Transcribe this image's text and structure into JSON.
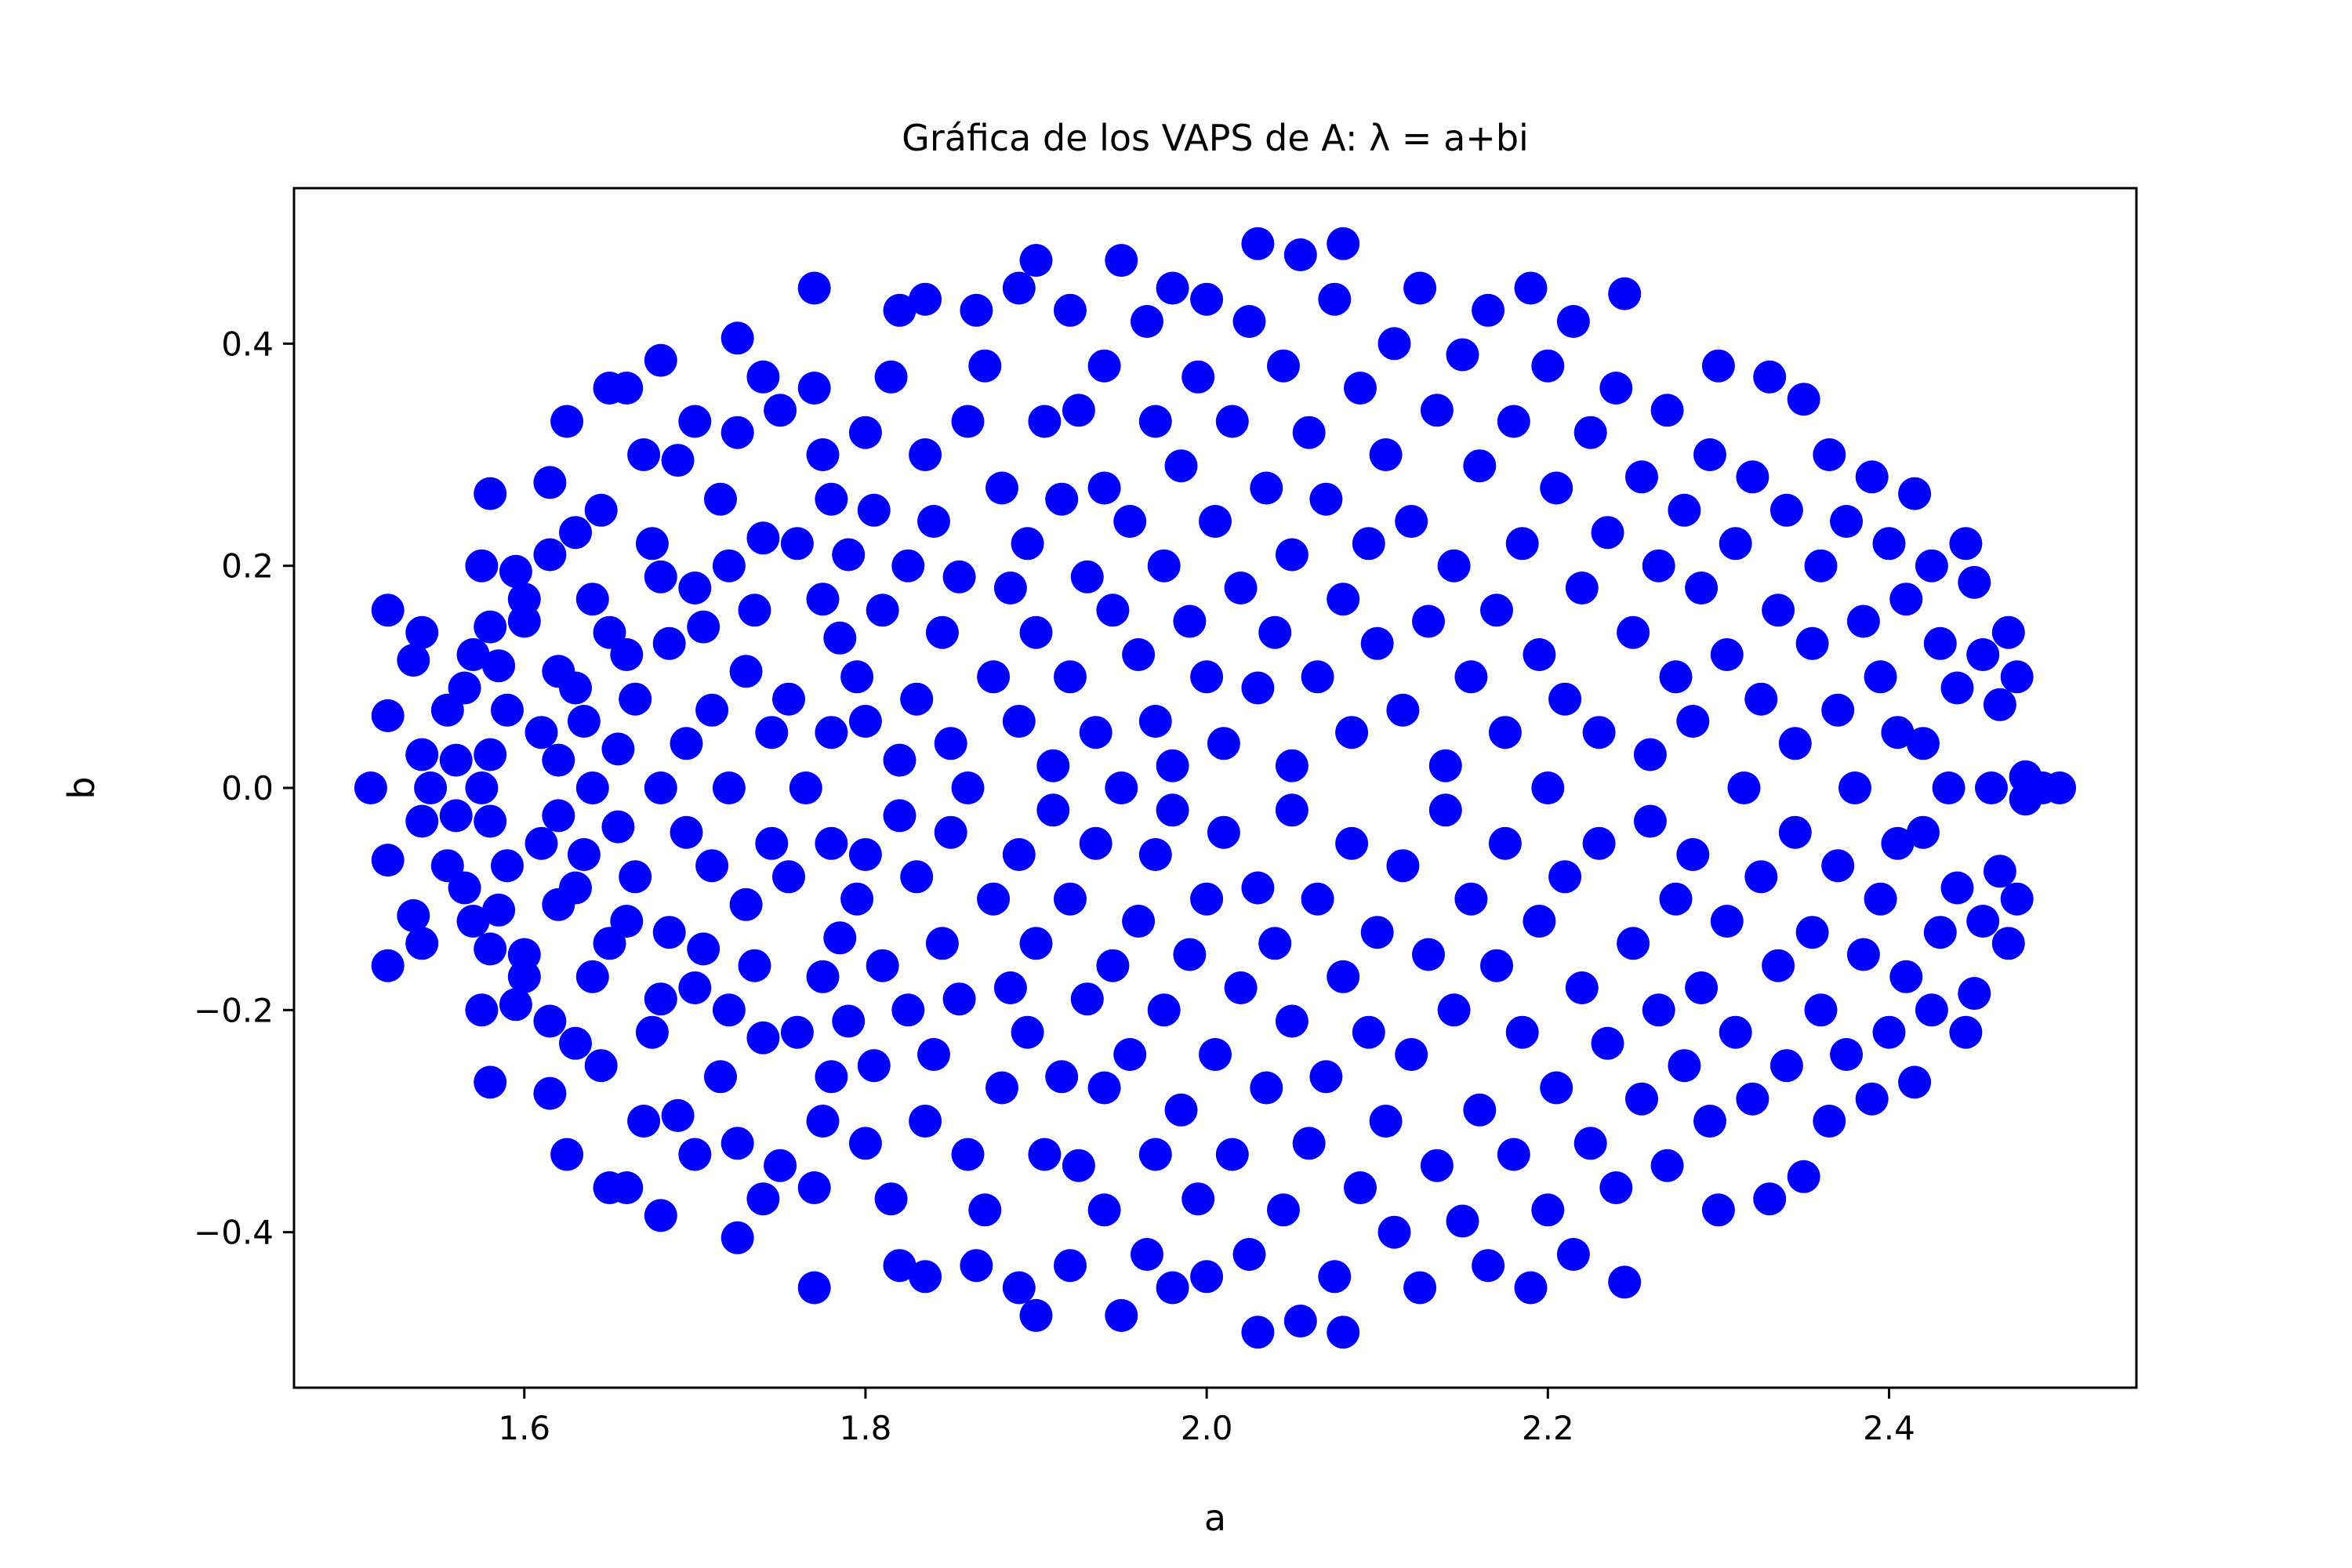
{
  "chart_data": {
    "type": "scatter",
    "title": "Gráfica de los VAPS de A: λ = a+bi",
    "xlabel": "a",
    "ylabel": "b",
    "xlim": [
      1.465,
      2.545
    ],
    "ylim": [
      -0.54,
      0.54
    ],
    "xticks": [
      1.6,
      1.8,
      2.0,
      2.2,
      2.4
    ],
    "xtick_labels": [
      "1.6",
      "1.8",
      "2.0",
      "2.2",
      "2.4"
    ],
    "yticks": [
      -0.4,
      -0.2,
      0.0,
      0.2,
      0.4
    ],
    "ytick_labels": [
      "−0.4",
      "−0.2",
      "0.0",
      "0.2",
      "0.4"
    ],
    "grid": false,
    "marker_color": "#0000ff",
    "symmetry": "points appear in complex-conjugate pairs (a, ±b); listed below are the upper half-plane points (b ≥ 0), the mirrored points (a, −b) are also plotted",
    "series": [
      {
        "points_upper": [
          [
            1.51,
            0.0
          ],
          [
            1.52,
            0.16
          ],
          [
            1.52,
            0.065
          ],
          [
            1.535,
            0.115
          ],
          [
            1.54,
            0.14
          ],
          [
            1.54,
            0.03
          ],
          [
            1.545,
            0.0
          ],
          [
            1.555,
            0.07
          ],
          [
            1.56,
            0.025
          ],
          [
            1.565,
            0.09
          ],
          [
            1.57,
            0.12
          ],
          [
            1.575,
            0.2
          ],
          [
            1.575,
            0.0
          ],
          [
            1.58,
            0.265
          ],
          [
            1.58,
            0.145
          ],
          [
            1.58,
            0.03
          ],
          [
            1.585,
            0.11
          ],
          [
            1.59,
            0.07
          ],
          [
            1.595,
            0.195
          ],
          [
            1.6,
            0.17
          ],
          [
            1.6,
            0.15
          ],
          [
            1.61,
            0.05
          ],
          [
            1.615,
            0.21
          ],
          [
            1.615,
            0.275
          ],
          [
            1.62,
            0.105
          ],
          [
            1.62,
            0.025
          ],
          [
            1.625,
            0.33
          ],
          [
            1.63,
            0.23
          ],
          [
            1.63,
            0.09
          ],
          [
            1.635,
            0.06
          ],
          [
            1.64,
            0.17
          ],
          [
            1.64,
            0.0
          ],
          [
            1.645,
            0.25
          ],
          [
            1.65,
            0.36
          ],
          [
            1.65,
            0.14
          ],
          [
            1.655,
            0.035
          ],
          [
            1.66,
            0.36
          ],
          [
            1.66,
            0.12
          ],
          [
            1.665,
            0.08
          ],
          [
            1.67,
            0.3
          ],
          [
            1.675,
            0.22
          ],
          [
            1.68,
            0.385
          ],
          [
            1.68,
            0.19
          ],
          [
            1.68,
            0.0
          ],
          [
            1.685,
            0.13
          ],
          [
            1.69,
            0.295
          ],
          [
            1.695,
            0.04
          ],
          [
            1.7,
            0.33
          ],
          [
            1.7,
            0.18
          ],
          [
            1.705,
            0.145
          ],
          [
            1.71,
            0.07
          ],
          [
            1.715,
            0.26
          ],
          [
            1.72,
            0.2
          ],
          [
            1.72,
            0.0
          ],
          [
            1.725,
            0.405
          ],
          [
            1.725,
            0.32
          ],
          [
            1.73,
            0.105
          ],
          [
            1.735,
            0.16
          ],
          [
            1.74,
            0.37
          ],
          [
            1.74,
            0.225
          ],
          [
            1.745,
            0.05
          ],
          [
            1.75,
            0.34
          ],
          [
            1.755,
            0.08
          ],
          [
            1.76,
            0.22
          ],
          [
            1.765,
            0.0
          ],
          [
            1.77,
            0.45
          ],
          [
            1.77,
            0.36
          ],
          [
            1.775,
            0.3
          ],
          [
            1.775,
            0.17
          ],
          [
            1.78,
            0.26
          ],
          [
            1.78,
            0.05
          ],
          [
            1.785,
            0.135
          ],
          [
            1.79,
            0.21
          ],
          [
            1.795,
            0.1
          ],
          [
            1.8,
            0.32
          ],
          [
            1.8,
            0.06
          ],
          [
            1.805,
            0.25
          ],
          [
            1.81,
            0.16
          ],
          [
            1.815,
            0.37
          ],
          [
            1.82,
            0.025
          ],
          [
            1.82,
            0.43
          ],
          [
            1.825,
            0.2
          ],
          [
            1.83,
            0.08
          ],
          [
            1.835,
            0.44
          ],
          [
            1.835,
            0.3
          ],
          [
            1.84,
            0.24
          ],
          [
            1.845,
            0.14
          ],
          [
            1.85,
            0.04
          ],
          [
            1.855,
            0.19
          ],
          [
            1.86,
            0.33
          ],
          [
            1.86,
            0.0
          ],
          [
            1.865,
            0.43
          ],
          [
            1.87,
            0.38
          ],
          [
            1.875,
            0.1
          ],
          [
            1.88,
            0.27
          ],
          [
            1.885,
            0.18
          ],
          [
            1.89,
            0.45
          ],
          [
            1.89,
            0.06
          ],
          [
            1.895,
            0.22
          ],
          [
            1.9,
            0.475
          ],
          [
            1.9,
            0.14
          ],
          [
            1.905,
            0.33
          ],
          [
            1.91,
            0.02
          ],
          [
            1.915,
            0.26
          ],
          [
            1.92,
            0.43
          ],
          [
            1.92,
            0.1
          ],
          [
            1.925,
            0.34
          ],
          [
            1.93,
            0.19
          ],
          [
            1.935,
            0.05
          ],
          [
            1.94,
            0.38
          ],
          [
            1.94,
            0.27
          ],
          [
            1.945,
            0.16
          ],
          [
            1.95,
            0.475
          ],
          [
            1.95,
            0.0
          ],
          [
            1.955,
            0.24
          ],
          [
            1.96,
            0.12
          ],
          [
            1.965,
            0.42
          ],
          [
            1.97,
            0.33
          ],
          [
            1.97,
            0.06
          ],
          [
            1.975,
            0.2
          ],
          [
            1.98,
            0.45
          ],
          [
            1.98,
            0.02
          ],
          [
            1.985,
            0.29
          ],
          [
            1.99,
            0.15
          ],
          [
            1.995,
            0.37
          ],
          [
            2.0,
            0.1
          ],
          [
            2.0,
            0.44
          ],
          [
            2.005,
            0.24
          ],
          [
            2.01,
            0.04
          ],
          [
            2.015,
            0.33
          ],
          [
            2.02,
            0.18
          ],
          [
            2.025,
            0.42
          ],
          [
            2.03,
            0.09
          ],
          [
            2.03,
            0.49
          ],
          [
            2.035,
            0.27
          ],
          [
            2.04,
            0.14
          ],
          [
            2.045,
            0.38
          ],
          [
            2.05,
            0.02
          ],
          [
            2.05,
            0.21
          ],
          [
            2.055,
            0.48
          ],
          [
            2.06,
            0.32
          ],
          [
            2.065,
            0.1
          ],
          [
            2.07,
            0.26
          ],
          [
            2.075,
            0.44
          ],
          [
            2.08,
            0.17
          ],
          [
            2.08,
            0.49
          ],
          [
            2.085,
            0.05
          ],
          [
            2.09,
            0.36
          ],
          [
            2.095,
            0.22
          ],
          [
            2.1,
            0.13
          ],
          [
            2.105,
            0.3
          ],
          [
            2.11,
            0.4
          ],
          [
            2.115,
            0.07
          ],
          [
            2.12,
            0.24
          ],
          [
            2.125,
            0.45
          ],
          [
            2.13,
            0.15
          ],
          [
            2.135,
            0.34
          ],
          [
            2.14,
            0.02
          ],
          [
            2.145,
            0.2
          ],
          [
            2.15,
            0.39
          ],
          [
            2.155,
            0.1
          ],
          [
            2.16,
            0.29
          ],
          [
            2.165,
            0.43
          ],
          [
            2.17,
            0.16
          ],
          [
            2.175,
            0.05
          ],
          [
            2.18,
            0.33
          ],
          [
            2.185,
            0.22
          ],
          [
            2.19,
            0.45
          ],
          [
            2.195,
            0.12
          ],
          [
            2.2,
            0.38
          ],
          [
            2.2,
            0.0
          ],
          [
            2.205,
            0.27
          ],
          [
            2.21,
            0.08
          ],
          [
            2.215,
            0.42
          ],
          [
            2.22,
            0.18
          ],
          [
            2.225,
            0.32
          ],
          [
            2.23,
            0.05
          ],
          [
            2.235,
            0.23
          ],
          [
            2.24,
            0.36
          ],
          [
            2.245,
            0.445
          ],
          [
            2.25,
            0.14
          ],
          [
            2.255,
            0.28
          ],
          [
            2.26,
            0.03
          ],
          [
            2.265,
            0.2
          ],
          [
            2.27,
            0.34
          ],
          [
            2.275,
            0.1
          ],
          [
            2.28,
            0.25
          ],
          [
            2.285,
            0.06
          ],
          [
            2.29,
            0.18
          ],
          [
            2.295,
            0.3
          ],
          [
            2.3,
            0.38
          ],
          [
            2.305,
            0.12
          ],
          [
            2.31,
            0.22
          ],
          [
            2.315,
            0.0
          ],
          [
            2.32,
            0.28
          ],
          [
            2.325,
            0.08
          ],
          [
            2.33,
            0.37
          ],
          [
            2.335,
            0.16
          ],
          [
            2.34,
            0.25
          ],
          [
            2.345,
            0.04
          ],
          [
            2.35,
            0.35
          ],
          [
            2.355,
            0.13
          ],
          [
            2.36,
            0.2
          ],
          [
            2.365,
            0.3
          ],
          [
            2.37,
            0.07
          ],
          [
            2.375,
            0.24
          ],
          [
            2.38,
            0.0
          ],
          [
            2.385,
            0.15
          ],
          [
            2.39,
            0.28
          ],
          [
            2.395,
            0.1
          ],
          [
            2.4,
            0.22
          ],
          [
            2.405,
            0.05
          ],
          [
            2.41,
            0.17
          ],
          [
            2.415,
            0.265
          ],
          [
            2.42,
            0.04
          ],
          [
            2.425,
            0.2
          ],
          [
            2.43,
            0.13
          ],
          [
            2.435,
            0.0
          ],
          [
            2.44,
            0.09
          ],
          [
            2.445,
            0.22
          ],
          [
            2.45,
            0.185
          ],
          [
            2.455,
            0.12
          ],
          [
            2.46,
            0.0
          ],
          [
            2.465,
            0.075
          ],
          [
            2.47,
            0.14
          ],
          [
            2.475,
            0.1
          ],
          [
            2.48,
            0.01
          ],
          [
            2.49,
            0.0
          ],
          [
            2.5,
            0.0
          ]
        ]
      }
    ]
  }
}
